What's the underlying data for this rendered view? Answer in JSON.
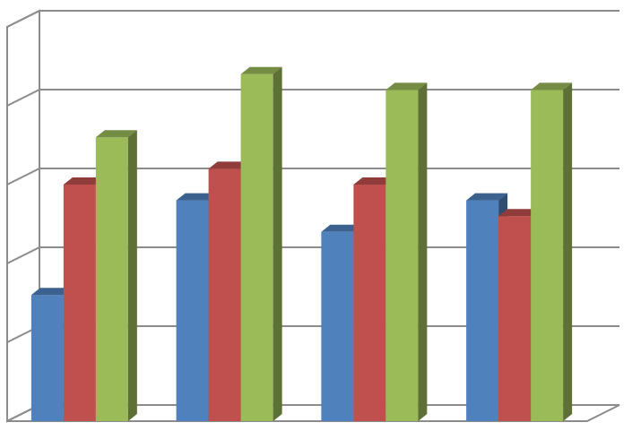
{
  "chart_data": {
    "type": "bar",
    "three_d": true,
    "title": "",
    "xlabel": "",
    "ylabel": "",
    "categories": [
      "",
      "",
      "",
      ""
    ],
    "ylim": [
      0,
      5
    ],
    "grid": true,
    "legend": "none",
    "series": [
      {
        "values": [
          1.6,
          2.8,
          2.4,
          2.8
        ],
        "color": "#4F81BD"
      },
      {
        "values": [
          3.0,
          3.2,
          3.0,
          2.6
        ],
        "color": "#C0504D"
      },
      {
        "values": [
          3.6,
          4.4,
          4.2,
          4.2
        ],
        "color": "#9BBB59"
      }
    ]
  }
}
